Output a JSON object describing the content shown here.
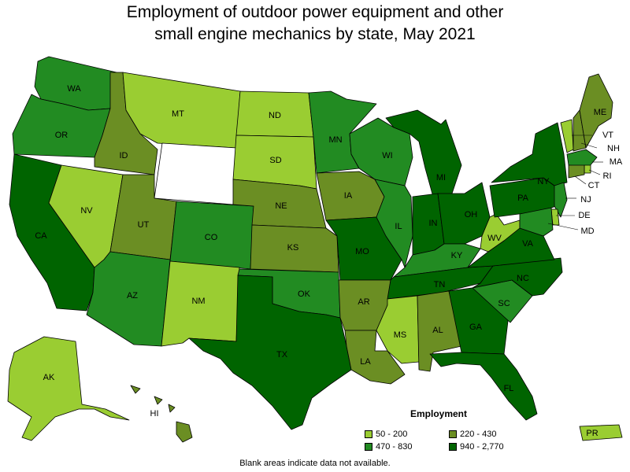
{
  "title_line1": "Employment of outdoor power equipment and other",
  "title_line2": "small engine mechanics by state, May 2021",
  "legend": {
    "title": "Employment",
    "items": [
      {
        "label": "50 - 200",
        "color": "#9acd32"
      },
      {
        "label": "220 - 430",
        "color": "#6b8e23"
      },
      {
        "label": "470 - 830",
        "color": "#228b22"
      },
      {
        "label": "940 - 2,770",
        "color": "#006400"
      }
    ]
  },
  "footnote": "Blank areas indicate data not available.",
  "colors": {
    "bin1": "#9acd32",
    "bin2": "#6b8e23",
    "bin3": "#228b22",
    "bin4": "#006400",
    "no_data": "#ffffff",
    "border": "#000000"
  },
  "states": [
    {
      "abbr": "WA",
      "bin": 3
    },
    {
      "abbr": "OR",
      "bin": 3
    },
    {
      "abbr": "CA",
      "bin": 4
    },
    {
      "abbr": "ID",
      "bin": 2
    },
    {
      "abbr": "NV",
      "bin": 1
    },
    {
      "abbr": "MT",
      "bin": 1
    },
    {
      "abbr": "WY",
      "bin": 0
    },
    {
      "abbr": "UT",
      "bin": 2
    },
    {
      "abbr": "AZ",
      "bin": 3
    },
    {
      "abbr": "CO",
      "bin": 3
    },
    {
      "abbr": "NM",
      "bin": 1
    },
    {
      "abbr": "ND",
      "bin": 1
    },
    {
      "abbr": "SD",
      "bin": 1
    },
    {
      "abbr": "NE",
      "bin": 2
    },
    {
      "abbr": "KS",
      "bin": 2
    },
    {
      "abbr": "OK",
      "bin": 3
    },
    {
      "abbr": "TX",
      "bin": 4
    },
    {
      "abbr": "MN",
      "bin": 3
    },
    {
      "abbr": "IA",
      "bin": 2
    },
    {
      "abbr": "MO",
      "bin": 4
    },
    {
      "abbr": "AR",
      "bin": 2
    },
    {
      "abbr": "LA",
      "bin": 2
    },
    {
      "abbr": "WI",
      "bin": 3
    },
    {
      "abbr": "IL",
      "bin": 3
    },
    {
      "abbr": "MI",
      "bin": 4
    },
    {
      "abbr": "IN",
      "bin": 4
    },
    {
      "abbr": "OH",
      "bin": 4
    },
    {
      "abbr": "KY",
      "bin": 3
    },
    {
      "abbr": "TN",
      "bin": 4
    },
    {
      "abbr": "MS",
      "bin": 1
    },
    {
      "abbr": "AL",
      "bin": 2
    },
    {
      "abbr": "GA",
      "bin": 4
    },
    {
      "abbr": "FL",
      "bin": 4
    },
    {
      "abbr": "SC",
      "bin": 3
    },
    {
      "abbr": "NC",
      "bin": 4
    },
    {
      "abbr": "VA",
      "bin": 4
    },
    {
      "abbr": "WV",
      "bin": 1
    },
    {
      "abbr": "PA",
      "bin": 4
    },
    {
      "abbr": "NY",
      "bin": 4
    },
    {
      "abbr": "VT",
      "bin": 1
    },
    {
      "abbr": "NH",
      "bin": 2
    },
    {
      "abbr": "ME",
      "bin": 2
    },
    {
      "abbr": "MA",
      "bin": 3
    },
    {
      "abbr": "RI",
      "bin": 1
    },
    {
      "abbr": "CT",
      "bin": 2
    },
    {
      "abbr": "NJ",
      "bin": 3
    },
    {
      "abbr": "DE",
      "bin": 1
    },
    {
      "abbr": "MD",
      "bin": 3
    },
    {
      "abbr": "AK",
      "bin": 1
    },
    {
      "abbr": "HI",
      "bin": 2
    },
    {
      "abbr": "PR",
      "bin": 1
    }
  ]
}
